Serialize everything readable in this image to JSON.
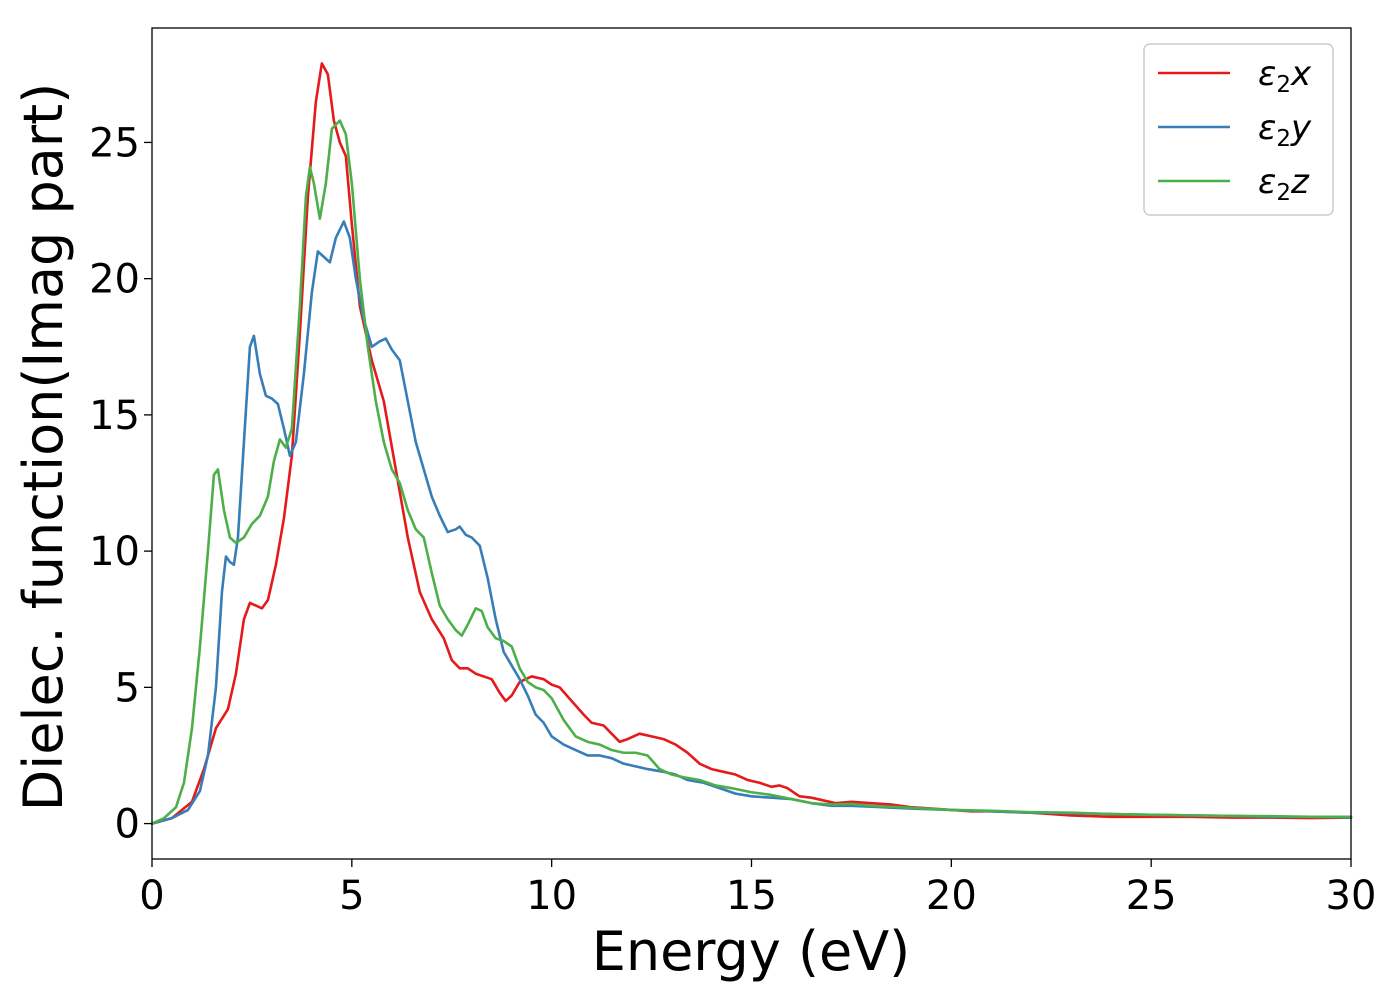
{
  "chart_data": {
    "type": "line",
    "xlabel": "Energy (eV)",
    "ylabel": "Dielec. function(Imag part)",
    "xlim": [
      0,
      30
    ],
    "ylim": [
      -1.3,
      29.2
    ],
    "xticks": [
      0,
      5,
      10,
      15,
      20,
      25,
      30
    ],
    "yticks": [
      0,
      5,
      10,
      15,
      20,
      25
    ],
    "xtick_labels": [
      "0",
      "5",
      "10",
      "15",
      "20",
      "25",
      "30"
    ],
    "ytick_labels": [
      "0",
      "5",
      "10",
      "15",
      "20",
      "25"
    ],
    "grid": false,
    "legend_position": "top-right",
    "series": [
      {
        "name": "ε₂x",
        "legend_base": "ε",
        "legend_sub": "2",
        "legend_var": "x",
        "color": "#e41a1c",
        "points": [
          [
            0,
            0
          ],
          [
            0.5,
            0.2
          ],
          [
            1,
            0.8
          ],
          [
            1.3,
            2
          ],
          [
            1.6,
            3.5
          ],
          [
            1.9,
            4.2
          ],
          [
            2.1,
            5.5
          ],
          [
            2.3,
            7.5
          ],
          [
            2.45,
            8.1
          ],
          [
            2.6,
            8.0
          ],
          [
            2.75,
            7.9
          ],
          [
            2.9,
            8.2
          ],
          [
            3.1,
            9.5
          ],
          [
            3.3,
            11.2
          ],
          [
            3.5,
            13.5
          ],
          [
            3.7,
            18
          ],
          [
            3.9,
            23
          ],
          [
            4.1,
            26.5
          ],
          [
            4.25,
            27.9
          ],
          [
            4.4,
            27.5
          ],
          [
            4.55,
            25.8
          ],
          [
            4.7,
            25
          ],
          [
            4.85,
            24.5
          ],
          [
            5.0,
            22
          ],
          [
            5.2,
            19
          ],
          [
            5.5,
            17
          ],
          [
            5.8,
            15.5
          ],
          [
            6.1,
            13
          ],
          [
            6.4,
            10.5
          ],
          [
            6.7,
            8.5
          ],
          [
            7.0,
            7.5
          ],
          [
            7.3,
            6.8
          ],
          [
            7.5,
            6.0
          ],
          [
            7.7,
            5.7
          ],
          [
            7.9,
            5.7
          ],
          [
            8.1,
            5.5
          ],
          [
            8.3,
            5.4
          ],
          [
            8.5,
            5.3
          ],
          [
            8.7,
            4.8
          ],
          [
            8.85,
            4.5
          ],
          [
            9.0,
            4.7
          ],
          [
            9.2,
            5.2
          ],
          [
            9.5,
            5.4
          ],
          [
            9.8,
            5.3
          ],
          [
            10.0,
            5.1
          ],
          [
            10.2,
            5.0
          ],
          [
            10.5,
            4.5
          ],
          [
            10.8,
            4.0
          ],
          [
            11.0,
            3.7
          ],
          [
            11.3,
            3.6
          ],
          [
            11.5,
            3.3
          ],
          [
            11.7,
            3.0
          ],
          [
            11.9,
            3.1
          ],
          [
            12.2,
            3.3
          ],
          [
            12.5,
            3.2
          ],
          [
            12.8,
            3.1
          ],
          [
            13.1,
            2.9
          ],
          [
            13.4,
            2.6
          ],
          [
            13.7,
            2.2
          ],
          [
            14.0,
            2.0
          ],
          [
            14.3,
            1.9
          ],
          [
            14.6,
            1.8
          ],
          [
            14.9,
            1.6
          ],
          [
            15.2,
            1.5
          ],
          [
            15.5,
            1.35
          ],
          [
            15.7,
            1.4
          ],
          [
            15.9,
            1.3
          ],
          [
            16.2,
            1.0
          ],
          [
            16.5,
            0.95
          ],
          [
            16.8,
            0.85
          ],
          [
            17.1,
            0.75
          ],
          [
            17.5,
            0.8
          ],
          [
            18,
            0.75
          ],
          [
            18.5,
            0.7
          ],
          [
            19,
            0.6
          ],
          [
            19.5,
            0.55
          ],
          [
            20,
            0.5
          ],
          [
            20.5,
            0.45
          ],
          [
            21,
            0.45
          ],
          [
            22,
            0.4
          ],
          [
            23,
            0.3
          ],
          [
            24,
            0.25
          ],
          [
            25,
            0.25
          ],
          [
            26,
            0.25
          ],
          [
            27,
            0.22
          ],
          [
            28,
            0.22
          ],
          [
            29,
            0.2
          ],
          [
            30,
            0.22
          ]
        ]
      },
      {
        "name": "ε₂y",
        "legend_base": "ε",
        "legend_sub": "2",
        "legend_var": "y",
        "color": "#377eb8",
        "points": [
          [
            0,
            0
          ],
          [
            0.5,
            0.2
          ],
          [
            0.9,
            0.5
          ],
          [
            1.2,
            1.2
          ],
          [
            1.4,
            2.5
          ],
          [
            1.6,
            5
          ],
          [
            1.75,
            8.5
          ],
          [
            1.85,
            9.8
          ],
          [
            1.95,
            9.6
          ],
          [
            2.05,
            9.5
          ],
          [
            2.15,
            10.5
          ],
          [
            2.3,
            14
          ],
          [
            2.45,
            17.5
          ],
          [
            2.55,
            17.9
          ],
          [
            2.7,
            16.5
          ],
          [
            2.85,
            15.7
          ],
          [
            3.0,
            15.6
          ],
          [
            3.15,
            15.4
          ],
          [
            3.3,
            14.5
          ],
          [
            3.45,
            13.5
          ],
          [
            3.6,
            14
          ],
          [
            3.8,
            16.5
          ],
          [
            4.0,
            19.5
          ],
          [
            4.15,
            21.0
          ],
          [
            4.3,
            20.8
          ],
          [
            4.45,
            20.6
          ],
          [
            4.6,
            21.5
          ],
          [
            4.8,
            22.1
          ],
          [
            4.95,
            21.5
          ],
          [
            5.1,
            20
          ],
          [
            5.3,
            18.5
          ],
          [
            5.5,
            17.5
          ],
          [
            5.7,
            17.7
          ],
          [
            5.85,
            17.8
          ],
          [
            6.0,
            17.4
          ],
          [
            6.2,
            17.0
          ],
          [
            6.4,
            15.5
          ],
          [
            6.6,
            14
          ],
          [
            6.8,
            13
          ],
          [
            7.0,
            12
          ],
          [
            7.2,
            11.3
          ],
          [
            7.4,
            10.7
          ],
          [
            7.6,
            10.8
          ],
          [
            7.7,
            10.9
          ],
          [
            7.85,
            10.6
          ],
          [
            8.0,
            10.5
          ],
          [
            8.2,
            10.2
          ],
          [
            8.4,
            9
          ],
          [
            8.6,
            7.5
          ],
          [
            8.8,
            6.3
          ],
          [
            9.0,
            5.8
          ],
          [
            9.2,
            5.3
          ],
          [
            9.4,
            4.7
          ],
          [
            9.6,
            4.0
          ],
          [
            9.8,
            3.7
          ],
          [
            10.0,
            3.2
          ],
          [
            10.3,
            2.9
          ],
          [
            10.6,
            2.7
          ],
          [
            10.9,
            2.5
          ],
          [
            11.2,
            2.5
          ],
          [
            11.5,
            2.4
          ],
          [
            11.8,
            2.2
          ],
          [
            12.1,
            2.1
          ],
          [
            12.4,
            2.0
          ],
          [
            12.8,
            1.9
          ],
          [
            13.1,
            1.8
          ],
          [
            13.4,
            1.6
          ],
          [
            13.8,
            1.5
          ],
          [
            14.2,
            1.3
          ],
          [
            14.6,
            1.1
          ],
          [
            15.0,
            1.0
          ],
          [
            15.5,
            0.95
          ],
          [
            16.0,
            0.9
          ],
          [
            16.5,
            0.75
          ],
          [
            17,
            0.65
          ],
          [
            17.5,
            0.65
          ],
          [
            18,
            0.62
          ],
          [
            19,
            0.55
          ],
          [
            20,
            0.5
          ],
          [
            21,
            0.45
          ],
          [
            22,
            0.4
          ],
          [
            23,
            0.38
          ],
          [
            24,
            0.35
          ],
          [
            25,
            0.32
          ],
          [
            26,
            0.3
          ],
          [
            27,
            0.28
          ],
          [
            28,
            0.25
          ],
          [
            29,
            0.25
          ],
          [
            30,
            0.22
          ]
        ]
      },
      {
        "name": "ε₂z",
        "legend_base": "ε",
        "legend_sub": "2",
        "legend_var": "z",
        "color": "#4daf4a",
        "points": [
          [
            0,
            0
          ],
          [
            0.3,
            0.2
          ],
          [
            0.6,
            0.6
          ],
          [
            0.8,
            1.5
          ],
          [
            1.0,
            3.5
          ],
          [
            1.2,
            6.5
          ],
          [
            1.4,
            10
          ],
          [
            1.55,
            12.8
          ],
          [
            1.65,
            13.0
          ],
          [
            1.8,
            11.5
          ],
          [
            1.95,
            10.5
          ],
          [
            2.1,
            10.3
          ],
          [
            2.3,
            10.5
          ],
          [
            2.5,
            11
          ],
          [
            2.7,
            11.3
          ],
          [
            2.9,
            12
          ],
          [
            3.05,
            13.3
          ],
          [
            3.2,
            14.1
          ],
          [
            3.35,
            13.8
          ],
          [
            3.5,
            14.5
          ],
          [
            3.7,
            19
          ],
          [
            3.85,
            23
          ],
          [
            3.95,
            24.1
          ],
          [
            4.05,
            23.5
          ],
          [
            4.2,
            22.2
          ],
          [
            4.35,
            23.5
          ],
          [
            4.5,
            25.5
          ],
          [
            4.7,
            25.8
          ],
          [
            4.85,
            25.3
          ],
          [
            5.0,
            23.5
          ],
          [
            5.2,
            20
          ],
          [
            5.4,
            17.5
          ],
          [
            5.6,
            15.5
          ],
          [
            5.8,
            14
          ],
          [
            6.0,
            13
          ],
          [
            6.2,
            12.5
          ],
          [
            6.4,
            11.5
          ],
          [
            6.6,
            10.8
          ],
          [
            6.8,
            10.5
          ],
          [
            7.0,
            9.2
          ],
          [
            7.2,
            8
          ],
          [
            7.4,
            7.5
          ],
          [
            7.6,
            7.1
          ],
          [
            7.75,
            6.9
          ],
          [
            7.9,
            7.3
          ],
          [
            8.1,
            7.9
          ],
          [
            8.25,
            7.8
          ],
          [
            8.4,
            7.2
          ],
          [
            8.6,
            6.8
          ],
          [
            8.8,
            6.7
          ],
          [
            9.0,
            6.5
          ],
          [
            9.2,
            5.7
          ],
          [
            9.4,
            5.2
          ],
          [
            9.6,
            5.0
          ],
          [
            9.8,
            4.9
          ],
          [
            10.0,
            4.6
          ],
          [
            10.3,
            3.8
          ],
          [
            10.6,
            3.2
          ],
          [
            10.9,
            3.0
          ],
          [
            11.2,
            2.9
          ],
          [
            11.5,
            2.7
          ],
          [
            11.8,
            2.6
          ],
          [
            12.1,
            2.6
          ],
          [
            12.4,
            2.5
          ],
          [
            12.7,
            2.0
          ],
          [
            13.0,
            1.8
          ],
          [
            13.3,
            1.7
          ],
          [
            13.7,
            1.6
          ],
          [
            14.1,
            1.4
          ],
          [
            14.5,
            1.3
          ],
          [
            15.0,
            1.15
          ],
          [
            15.5,
            1.05
          ],
          [
            16.0,
            0.9
          ],
          [
            16.5,
            0.75
          ],
          [
            17,
            0.7
          ],
          [
            17.5,
            0.72
          ],
          [
            18,
            0.65
          ],
          [
            19,
            0.58
          ],
          [
            20,
            0.5
          ],
          [
            21,
            0.47
          ],
          [
            22,
            0.42
          ],
          [
            23,
            0.4
          ],
          [
            24,
            0.35
          ],
          [
            25,
            0.32
          ],
          [
            26,
            0.3
          ],
          [
            27,
            0.28
          ],
          [
            28,
            0.27
          ],
          [
            29,
            0.25
          ],
          [
            30,
            0.25
          ]
        ]
      }
    ]
  }
}
